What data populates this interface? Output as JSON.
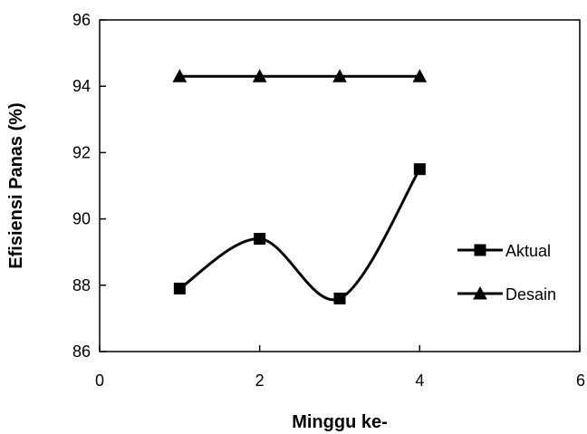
{
  "chart_data": {
    "type": "line",
    "title": "",
    "xlabel": "Minggu ke-",
    "ylabel": "Efisiensi Panas (%)",
    "xlim": [
      0,
      6
    ],
    "ylim": [
      86,
      96
    ],
    "xticks": [
      "0",
      "2",
      "4",
      "6"
    ],
    "yticks": [
      "86",
      "88",
      "90",
      "92",
      "94",
      "96"
    ],
    "grid": false,
    "legend_position": "right",
    "series": [
      {
        "name": "Aktual",
        "marker": "square",
        "smooth": true,
        "color": "#000000",
        "marker_fill": "#000000",
        "x": [
          1,
          2,
          3,
          4
        ],
        "y": [
          87.9,
          89.4,
          87.6,
          91.5
        ]
      },
      {
        "name": "Desain",
        "marker": "triangle",
        "smooth": false,
        "color": "#000000",
        "marker_fill": "#000000",
        "x": [
          1,
          2,
          3,
          4
        ],
        "y": [
          94.3,
          94.3,
          94.3,
          94.3
        ]
      }
    ]
  }
}
